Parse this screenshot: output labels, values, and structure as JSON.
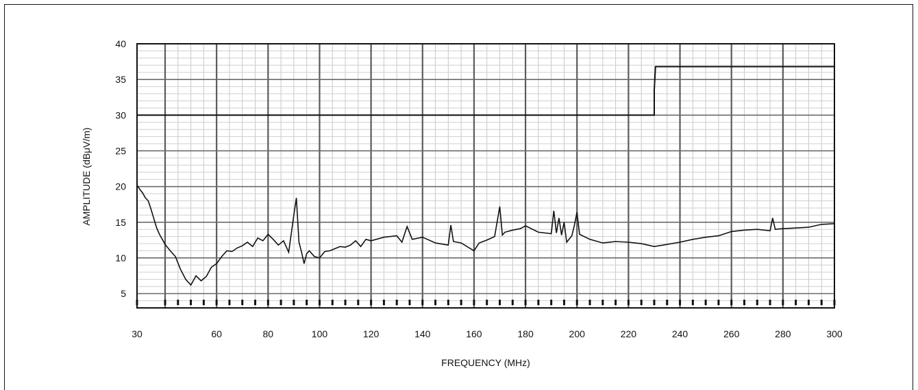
{
  "chart_data": {
    "type": "line",
    "title": "",
    "xlabel": "FREQUENCY (MHz)",
    "ylabel": "AMPLITUDE (dBμV/m)",
    "xlim": [
      30,
      300
    ],
    "ylim": [
      3,
      40
    ],
    "x_axis_scale": "compressed between 30 and 40 MHz, linear from 40 to 300 MHz",
    "grid": true,
    "x_tick_labels": [
      "30",
      "60",
      "80",
      "100",
      "120",
      "140",
      "160",
      "180",
      "200",
      "220",
      "240",
      "260",
      "280",
      "300"
    ],
    "x_tick_values": [
      30,
      60,
      80,
      100,
      120,
      140,
      160,
      180,
      200,
      220,
      240,
      260,
      280,
      300
    ],
    "y_tick_labels": [
      "5",
      "10",
      "15",
      "20",
      "25",
      "30",
      "35",
      "40"
    ],
    "y_tick_values": [
      5,
      10,
      15,
      20,
      25,
      30,
      35,
      40
    ],
    "series": [
      {
        "role": "limit",
        "x": [
          30,
          230,
          230,
          230.5,
          300
        ],
        "y": [
          30,
          30,
          33.5,
          36.8,
          36.8
        ]
      },
      {
        "role": "measured",
        "x": [
          30,
          31,
          32,
          33,
          34,
          35,
          36,
          37,
          38,
          39,
          40,
          42,
          44,
          46,
          48,
          50,
          52,
          54,
          56,
          58,
          60,
          62,
          64,
          66,
          68,
          70,
          72,
          74,
          76,
          78,
          80,
          82,
          84,
          86,
          88,
          90,
          91,
          92,
          93,
          94,
          95,
          96,
          98,
          100,
          102,
          104,
          106,
          108,
          110,
          112,
          114,
          116,
          118,
          120,
          125,
          130,
          132,
          134,
          136,
          140,
          145,
          150,
          151,
          152,
          155,
          160,
          162,
          165,
          168,
          170,
          171,
          172,
          175,
          178,
          180,
          185,
          190,
          191,
          192,
          193,
          194,
          195,
          196,
          198,
          199,
          200,
          201,
          205,
          210,
          215,
          220,
          225,
          230,
          235,
          240,
          245,
          250,
          255,
          260,
          265,
          270,
          275,
          276,
          277,
          280,
          285,
          290,
          295,
          300
        ],
        "y": [
          20.2,
          19.6,
          19.1,
          18.4,
          18.0,
          16.8,
          15.5,
          14.2,
          13.3,
          12.6,
          11.9,
          11.0,
          10.2,
          8.4,
          7.0,
          6.2,
          7.5,
          6.8,
          7.4,
          8.7,
          9.2,
          10.2,
          11.0,
          10.9,
          11.4,
          11.7,
          12.2,
          11.6,
          12.8,
          12.4,
          13.3,
          12.6,
          11.8,
          12.4,
          10.8,
          16.0,
          18.4,
          12.2,
          10.8,
          9.2,
          10.6,
          11.0,
          10.2,
          10.0,
          10.9,
          11.0,
          11.3,
          11.6,
          11.5,
          11.8,
          12.4,
          11.6,
          12.6,
          12.4,
          12.9,
          13.1,
          12.2,
          14.4,
          12.6,
          12.9,
          12.1,
          11.8,
          14.6,
          12.3,
          12.1,
          11.0,
          12.1,
          12.5,
          13.0,
          17.2,
          13.2,
          13.6,
          13.9,
          14.1,
          14.5,
          13.6,
          13.4,
          16.6,
          13.5,
          15.6,
          13.2,
          15.0,
          12.2,
          13.1,
          14.6,
          16.4,
          13.3,
          12.6,
          12.1,
          12.3,
          12.2,
          12.0,
          11.6,
          11.9,
          12.2,
          12.6,
          12.9,
          13.1,
          13.7,
          13.9,
          14.0,
          13.8,
          15.6,
          14.0,
          14.1,
          14.2,
          14.3,
          14.7,
          14.8
        ]
      }
    ]
  }
}
